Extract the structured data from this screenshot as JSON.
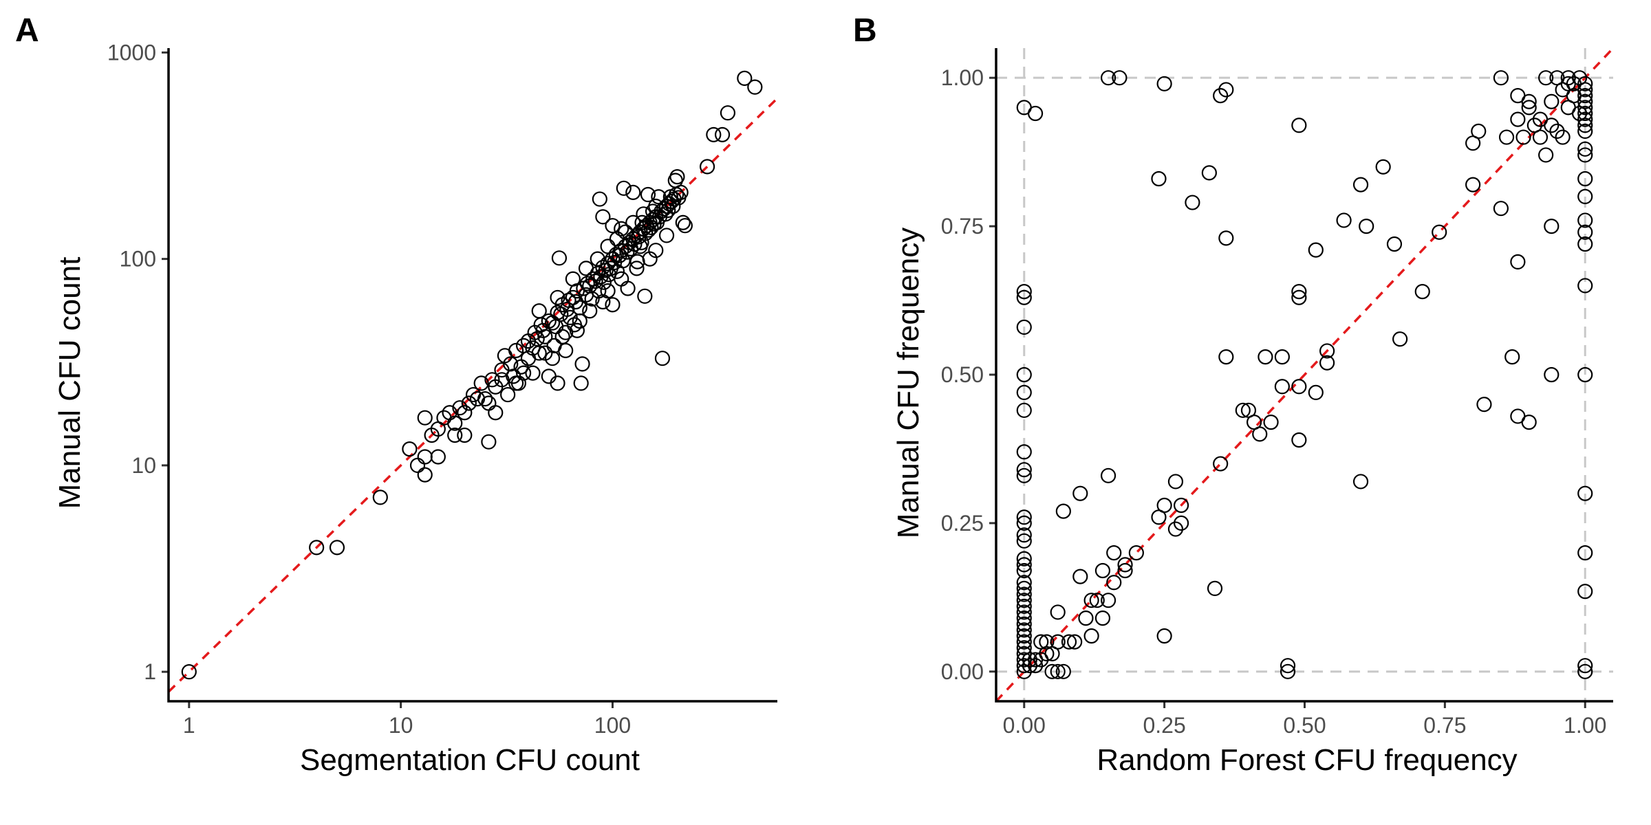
{
  "figure": {
    "panels": [
      {
        "tag": "A"
      },
      {
        "tag": "B"
      }
    ]
  },
  "colors": {
    "reference_line": "#e41a1c",
    "points": "#000000",
    "guide_lines": "#c8c8c8",
    "tick_text": "#4d4d4d"
  },
  "chart_data": [
    {
      "type": "scatter",
      "panel": "A",
      "title": "",
      "xlabel": "Segmentation CFU count",
      "ylabel": "Manual CFU count",
      "x_scale": "log10",
      "y_scale": "log10",
      "xlim": [
        0.8,
        600
      ],
      "ylim": [
        0.72,
        1050
      ],
      "x_ticks": [
        1,
        10,
        100
      ],
      "x_tick_labels": [
        "1",
        "10",
        "100"
      ],
      "y_ticks": [
        1,
        10,
        100,
        1000
      ],
      "y_tick_labels": [
        "1",
        "10",
        "100",
        "1000"
      ],
      "reference_line": "y = x",
      "grid": false,
      "marker": "open circle",
      "points": [
        [
          1,
          1
        ],
        [
          4,
          4
        ],
        [
          5,
          4
        ],
        [
          8,
          7
        ],
        [
          11,
          12
        ],
        [
          12,
          10
        ],
        [
          13,
          9
        ],
        [
          13,
          11
        ],
        [
          14,
          14
        ],
        [
          15,
          11
        ],
        [
          13,
          17
        ],
        [
          15,
          15
        ],
        [
          16,
          17
        ],
        [
          17,
          18
        ],
        [
          18,
          14
        ],
        [
          18,
          16
        ],
        [
          19,
          19
        ],
        [
          20,
          14
        ],
        [
          20,
          18
        ],
        [
          21,
          20
        ],
        [
          22,
          22
        ],
        [
          23,
          21
        ],
        [
          24,
          25
        ],
        [
          25,
          21
        ],
        [
          26,
          13
        ],
        [
          27,
          26
        ],
        [
          28,
          18
        ],
        [
          28,
          24
        ],
        [
          30,
          29
        ],
        [
          31,
          34
        ],
        [
          33,
          31
        ],
        [
          34,
          27
        ],
        [
          35,
          36
        ],
        [
          36,
          25
        ],
        [
          37,
          30
        ],
        [
          38,
          38
        ],
        [
          40,
          33
        ],
        [
          40,
          40
        ],
        [
          42,
          37
        ],
        [
          43,
          44
        ],
        [
          44,
          41
        ],
        [
          45,
          35
        ],
        [
          46,
          48
        ],
        [
          47,
          45
        ],
        [
          48,
          42
        ],
        [
          50,
          27
        ],
        [
          50,
          50
        ],
        [
          52,
          49
        ],
        [
          53,
          38
        ],
        [
          54,
          47
        ],
        [
          55,
          55
        ],
        [
          55,
          25
        ],
        [
          56,
          101
        ],
        [
          57,
          54
        ],
        [
          58,
          60
        ],
        [
          60,
          44
        ],
        [
          61,
          57
        ],
        [
          62,
          63
        ],
        [
          63,
          52
        ],
        [
          65,
          65
        ],
        [
          66,
          48
        ],
        [
          67,
          62
        ],
        [
          68,
          70
        ],
        [
          70,
          58
        ],
        [
          71,
          25
        ],
        [
          72,
          31
        ],
        [
          73,
          72
        ],
        [
          75,
          67
        ],
        [
          76,
          76
        ],
        [
          78,
          74
        ],
        [
          80,
          64
        ],
        [
          81,
          80
        ],
        [
          83,
          78
        ],
        [
          85,
          85
        ],
        [
          86,
          70
        ],
        [
          87,
          195
        ],
        [
          88,
          82
        ],
        [
          90,
          91
        ],
        [
          91,
          77
        ],
        [
          93,
          88
        ],
        [
          95,
          95
        ],
        [
          96,
          84
        ],
        [
          98,
          90
        ],
        [
          100,
          100
        ],
        [
          100,
          60
        ],
        [
          102,
          96
        ],
        [
          104,
          105
        ],
        [
          105,
          87
        ],
        [
          108,
          104
        ],
        [
          110,
          110
        ],
        [
          112,
          98
        ],
        [
          113,
          220
        ],
        [
          115,
          115
        ],
        [
          117,
          108
        ],
        [
          118,
          72
        ],
        [
          120,
          120
        ],
        [
          122,
          112
        ],
        [
          125,
          125
        ],
        [
          127,
          118
        ],
        [
          130,
          130
        ],
        [
          131,
          97
        ],
        [
          133,
          128
        ],
        [
          135,
          135
        ],
        [
          137,
          120
        ],
        [
          138,
          150
        ],
        [
          140,
          140
        ],
        [
          142,
          66
        ],
        [
          143,
          133
        ],
        [
          145,
          145
        ],
        [
          147,
          205
        ],
        [
          148,
          138
        ],
        [
          150,
          150
        ],
        [
          152,
          142
        ],
        [
          155,
          155
        ],
        [
          157,
          148
        ],
        [
          160,
          160
        ],
        [
          162,
          150
        ],
        [
          165,
          200
        ],
        [
          167,
          160
        ],
        [
          170,
          170
        ],
        [
          172,
          33
        ],
        [
          175,
          175
        ],
        [
          178,
          165
        ],
        [
          180,
          180
        ],
        [
          183,
          172
        ],
        [
          185,
          185
        ],
        [
          188,
          200
        ],
        [
          190,
          190
        ],
        [
          193,
          180
        ],
        [
          195,
          195
        ],
        [
          198,
          240
        ],
        [
          200,
          205
        ],
        [
          202,
          250
        ],
        [
          205,
          198
        ],
        [
          210,
          210
        ],
        [
          215,
          150
        ],
        [
          220,
          145
        ],
        [
          125,
          210
        ],
        [
          135,
          115
        ],
        [
          150,
          100
        ],
        [
          160,
          180
        ],
        [
          100,
          145
        ],
        [
          110,
          140
        ],
        [
          90,
          160
        ],
        [
          95,
          70
        ],
        [
          78,
          56
        ],
        [
          68,
          45
        ],
        [
          60,
          36
        ],
        [
          52,
          33
        ],
        [
          42,
          28
        ],
        [
          35,
          25
        ],
        [
          30,
          26
        ],
        [
          45,
          56
        ],
        [
          55,
          65
        ],
        [
          65,
          80
        ],
        [
          75,
          90
        ],
        [
          85,
          100
        ],
        [
          95,
          115
        ],
        [
          105,
          125
        ],
        [
          115,
          135
        ],
        [
          125,
          150
        ],
        [
          140,
          165
        ],
        [
          155,
          170
        ],
        [
          180,
          130
        ],
        [
          160,
          110
        ],
        [
          130,
          90
        ],
        [
          110,
          80
        ],
        [
          90,
          62
        ],
        [
          70,
          50
        ],
        [
          58,
          42
        ],
        [
          48,
          35
        ],
        [
          38,
          28
        ],
        [
          32,
          22
        ],
        [
          26,
          20
        ],
        [
          280,
          280
        ],
        [
          300,
          400
        ],
        [
          330,
          400
        ],
        [
          350,
          510
        ],
        [
          420,
          750
        ],
        [
          470,
          680
        ]
      ]
    },
    {
      "type": "scatter",
      "panel": "B",
      "title": "",
      "xlabel": "Random Forest CFU frequency",
      "ylabel": "Manual CFU frequency",
      "x_scale": "linear",
      "y_scale": "linear",
      "xlim": [
        -0.05,
        1.05
      ],
      "ylim": [
        -0.05,
        1.05
      ],
      "x_ticks": [
        0,
        0.25,
        0.5,
        0.75,
        1
      ],
      "x_tick_labels": [
        "0.00",
        "0.25",
        "0.50",
        "0.75",
        "1.00"
      ],
      "y_ticks": [
        0,
        0.25,
        0.5,
        0.75,
        1
      ],
      "y_tick_labels": [
        "0.00",
        "0.25",
        "0.50",
        "0.75",
        "1.00"
      ],
      "reference_line": "y = x",
      "guide_lines": "dashed at 0 and 1 on both axes",
      "grid": false,
      "marker": "open circle",
      "points": [
        [
          0,
          0.95
        ],
        [
          0.02,
          0.94
        ],
        [
          0.15,
          1.0
        ],
        [
          0.17,
          1.0
        ],
        [
          0.25,
          0.99
        ],
        [
          0.35,
          0.97
        ],
        [
          0.36,
          0.98
        ],
        [
          0.49,
          0.92
        ],
        [
          0.24,
          0.83
        ],
        [
          0.3,
          0.79
        ],
        [
          0.33,
          0.84
        ],
        [
          0.36,
          0.73
        ],
        [
          0.52,
          0.71
        ],
        [
          0.57,
          0.76
        ],
        [
          0.6,
          0.82
        ],
        [
          0.61,
          0.75
        ],
        [
          0.64,
          0.85
        ],
        [
          0.66,
          0.72
        ],
        [
          0.71,
          0.64
        ],
        [
          0.74,
          0.74
        ],
        [
          0.67,
          0.56
        ],
        [
          0.6,
          0.32
        ],
        [
          0.8,
          0.89
        ],
        [
          0.81,
          0.91
        ],
        [
          0.8,
          0.82
        ],
        [
          0.85,
          0.78
        ],
        [
          0.87,
          0.53
        ],
        [
          0.82,
          0.45
        ],
        [
          0.88,
          0.43
        ],
        [
          0.9,
          0.42
        ],
        [
          0.88,
          0.69
        ],
        [
          0.94,
          0.75
        ],
        [
          0.94,
          0.5
        ],
        [
          0.85,
          1.0
        ],
        [
          0.93,
          1.0
        ],
        [
          0.95,
          1.0
        ],
        [
          0.97,
          1.0
        ],
        [
          0.99,
          1.0
        ],
        [
          0.88,
          0.97
        ],
        [
          0.9,
          0.95
        ],
        [
          0.92,
          0.93
        ],
        [
          0.94,
          0.96
        ],
        [
          0.96,
          0.98
        ],
        [
          0.97,
          0.95
        ],
        [
          0.98,
          0.99
        ],
        [
          0.89,
          0.9
        ],
        [
          0.91,
          0.92
        ],
        [
          0.93,
          0.87
        ],
        [
          0.95,
          0.91
        ],
        [
          0.96,
          0.9
        ],
        [
          0.86,
          0.9
        ],
        [
          0.88,
          0.93
        ],
        [
          0.9,
          0.96
        ],
        [
          0.92,
          0.9
        ],
        [
          0.94,
          0.92
        ],
        [
          0.98,
          0.97
        ],
        [
          0.99,
          0.94
        ],
        [
          0.97,
          0.99
        ],
        [
          1,
          0.99
        ],
        [
          1,
          0.98
        ],
        [
          1,
          0.97
        ],
        [
          1,
          0.96
        ],
        [
          1,
          0.95
        ],
        [
          1,
          0.94
        ],
        [
          1,
          0.93
        ],
        [
          1,
          0.92
        ],
        [
          1,
          0.91
        ],
        [
          1,
          0.88
        ],
        [
          1,
          0.87
        ],
        [
          1,
          0.83
        ],
        [
          1,
          0.8
        ],
        [
          1,
          0.76
        ],
        [
          1,
          0.74
        ],
        [
          1,
          0.72
        ],
        [
          1,
          0.65
        ],
        [
          1,
          0.5
        ],
        [
          1,
          0.3
        ],
        [
          1,
          0.2
        ],
        [
          1,
          0.135
        ],
        [
          1,
          0.01
        ],
        [
          1,
          0.0
        ],
        [
          0,
          0.64
        ],
        [
          0,
          0.63
        ],
        [
          0,
          0.58
        ],
        [
          0,
          0.5
        ],
        [
          0,
          0.47
        ],
        [
          0,
          0.44
        ],
        [
          0,
          0.37
        ],
        [
          0,
          0.34
        ],
        [
          0,
          0.33
        ],
        [
          0,
          0.26
        ],
        [
          0,
          0.25
        ],
        [
          0,
          0.23
        ],
        [
          0,
          0.22
        ],
        [
          0,
          0.19
        ],
        [
          0,
          0.18
        ],
        [
          0,
          0.17
        ],
        [
          0,
          0.15
        ],
        [
          0,
          0.14
        ],
        [
          0,
          0.13
        ],
        [
          0,
          0.12
        ],
        [
          0,
          0.11
        ],
        [
          0,
          0.1
        ],
        [
          0,
          0.09
        ],
        [
          0,
          0.08
        ],
        [
          0,
          0.07
        ],
        [
          0,
          0.06
        ],
        [
          0,
          0.05
        ],
        [
          0,
          0.04
        ],
        [
          0,
          0.03
        ],
        [
          0,
          0.02
        ],
        [
          0,
          0.01
        ],
        [
          0,
          0.0
        ],
        [
          0.01,
          0.01
        ],
        [
          0.02,
          0.02
        ],
        [
          0.03,
          0.02
        ],
        [
          0.04,
          0.05
        ],
        [
          0.05,
          0.03
        ],
        [
          0.06,
          0.1
        ],
        [
          0.06,
          0.05
        ],
        [
          0.07,
          0.27
        ],
        [
          0.08,
          0.05
        ],
        [
          0.06,
          0.0
        ],
        [
          0.07,
          0.0
        ],
        [
          0.05,
          0.0
        ],
        [
          0.1,
          0.3
        ],
        [
          0.1,
          0.16
        ],
        [
          0.12,
          0.06
        ],
        [
          0.13,
          0.12
        ],
        [
          0.14,
          0.17
        ],
        [
          0.14,
          0.09
        ],
        [
          0.15,
          0.12
        ],
        [
          0.15,
          0.33
        ],
        [
          0.16,
          0.15
        ],
        [
          0.16,
          0.2
        ],
        [
          0.18,
          0.17
        ],
        [
          0.18,
          0.18
        ],
        [
          0.2,
          0.2
        ],
        [
          0.24,
          0.26
        ],
        [
          0.25,
          0.28
        ],
        [
          0.25,
          0.06
        ],
        [
          0.27,
          0.24
        ],
        [
          0.27,
          0.32
        ],
        [
          0.28,
          0.25
        ],
        [
          0.28,
          0.28
        ],
        [
          0.34,
          0.14
        ],
        [
          0.35,
          0.35
        ],
        [
          0.36,
          0.53
        ],
        [
          0.39,
          0.44
        ],
        [
          0.4,
          0.44
        ],
        [
          0.41,
          0.42
        ],
        [
          0.42,
          0.4
        ],
        [
          0.43,
          0.53
        ],
        [
          0.44,
          0.42
        ],
        [
          0.46,
          0.53
        ],
        [
          0.46,
          0.48
        ],
        [
          0.47,
          0.0
        ],
        [
          0.47,
          0.01
        ],
        [
          0.49,
          0.64
        ],
        [
          0.49,
          0.63
        ],
        [
          0.49,
          0.48
        ],
        [
          0.49,
          0.39
        ],
        [
          0.52,
          0.47
        ],
        [
          0.54,
          0.54
        ],
        [
          0.54,
          0.52
        ],
        [
          0.12,
          0.12
        ],
        [
          0.11,
          0.09
        ],
        [
          0.09,
          0.05
        ],
        [
          0.03,
          0.05
        ],
        [
          0.04,
          0.03
        ],
        [
          0.02,
          0.01
        ],
        [
          0.01,
          0.02
        ]
      ]
    }
  ]
}
